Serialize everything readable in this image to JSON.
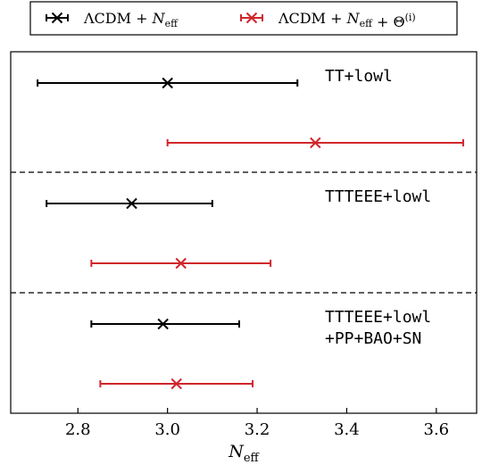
{
  "chart_data": {
    "type": "scatter",
    "xlabel": "N_eff",
    "xlim": [
      2.65,
      3.69
    ],
    "xticks": [
      2.8,
      3.0,
      3.2,
      3.4,
      3.6
    ],
    "xtick_labels": [
      "2.8",
      "3.0",
      "3.2",
      "3.4",
      "3.6"
    ],
    "grid": false,
    "legend_position": "top-center",
    "series": [
      {
        "name": "ΛCDM + N_eff",
        "color": "#000000",
        "marker": "x",
        "points": [
          {
            "group": "TT+lowl",
            "x": 3.0,
            "xerr_low": 2.71,
            "xerr_high": 3.29
          },
          {
            "group": "TTTEEE+lowl",
            "x": 2.92,
            "xerr_low": 2.73,
            "xerr_high": 3.1
          },
          {
            "group": "TTTEEE+lowl +PP+BAO+SN",
            "x": 2.99,
            "xerr_low": 2.83,
            "xerr_high": 3.16
          }
        ]
      },
      {
        "name": "ΛCDM + N_eff + Θ(i)",
        "color": "#d0262b",
        "marker": "x",
        "points": [
          {
            "group": "TT+lowl",
            "x": 3.33,
            "xerr_low": 3.0,
            "xerr_high": 3.66
          },
          {
            "group": "TTTEEE+lowl",
            "x": 3.03,
            "xerr_low": 2.83,
            "xerr_high": 3.23
          },
          {
            "group": "TTTEEE+lowl +PP+BAO+SN",
            "x": 3.02,
            "xerr_low": 2.85,
            "xerr_high": 3.19
          }
        ]
      }
    ],
    "groups": [
      {
        "label_lines": [
          "TT+lowl"
        ]
      },
      {
        "label_lines": [
          "TTTEEE+lowl"
        ]
      },
      {
        "label_lines": [
          "TTTEEE+lowl",
          "+PP+BAO+SN"
        ]
      }
    ]
  }
}
